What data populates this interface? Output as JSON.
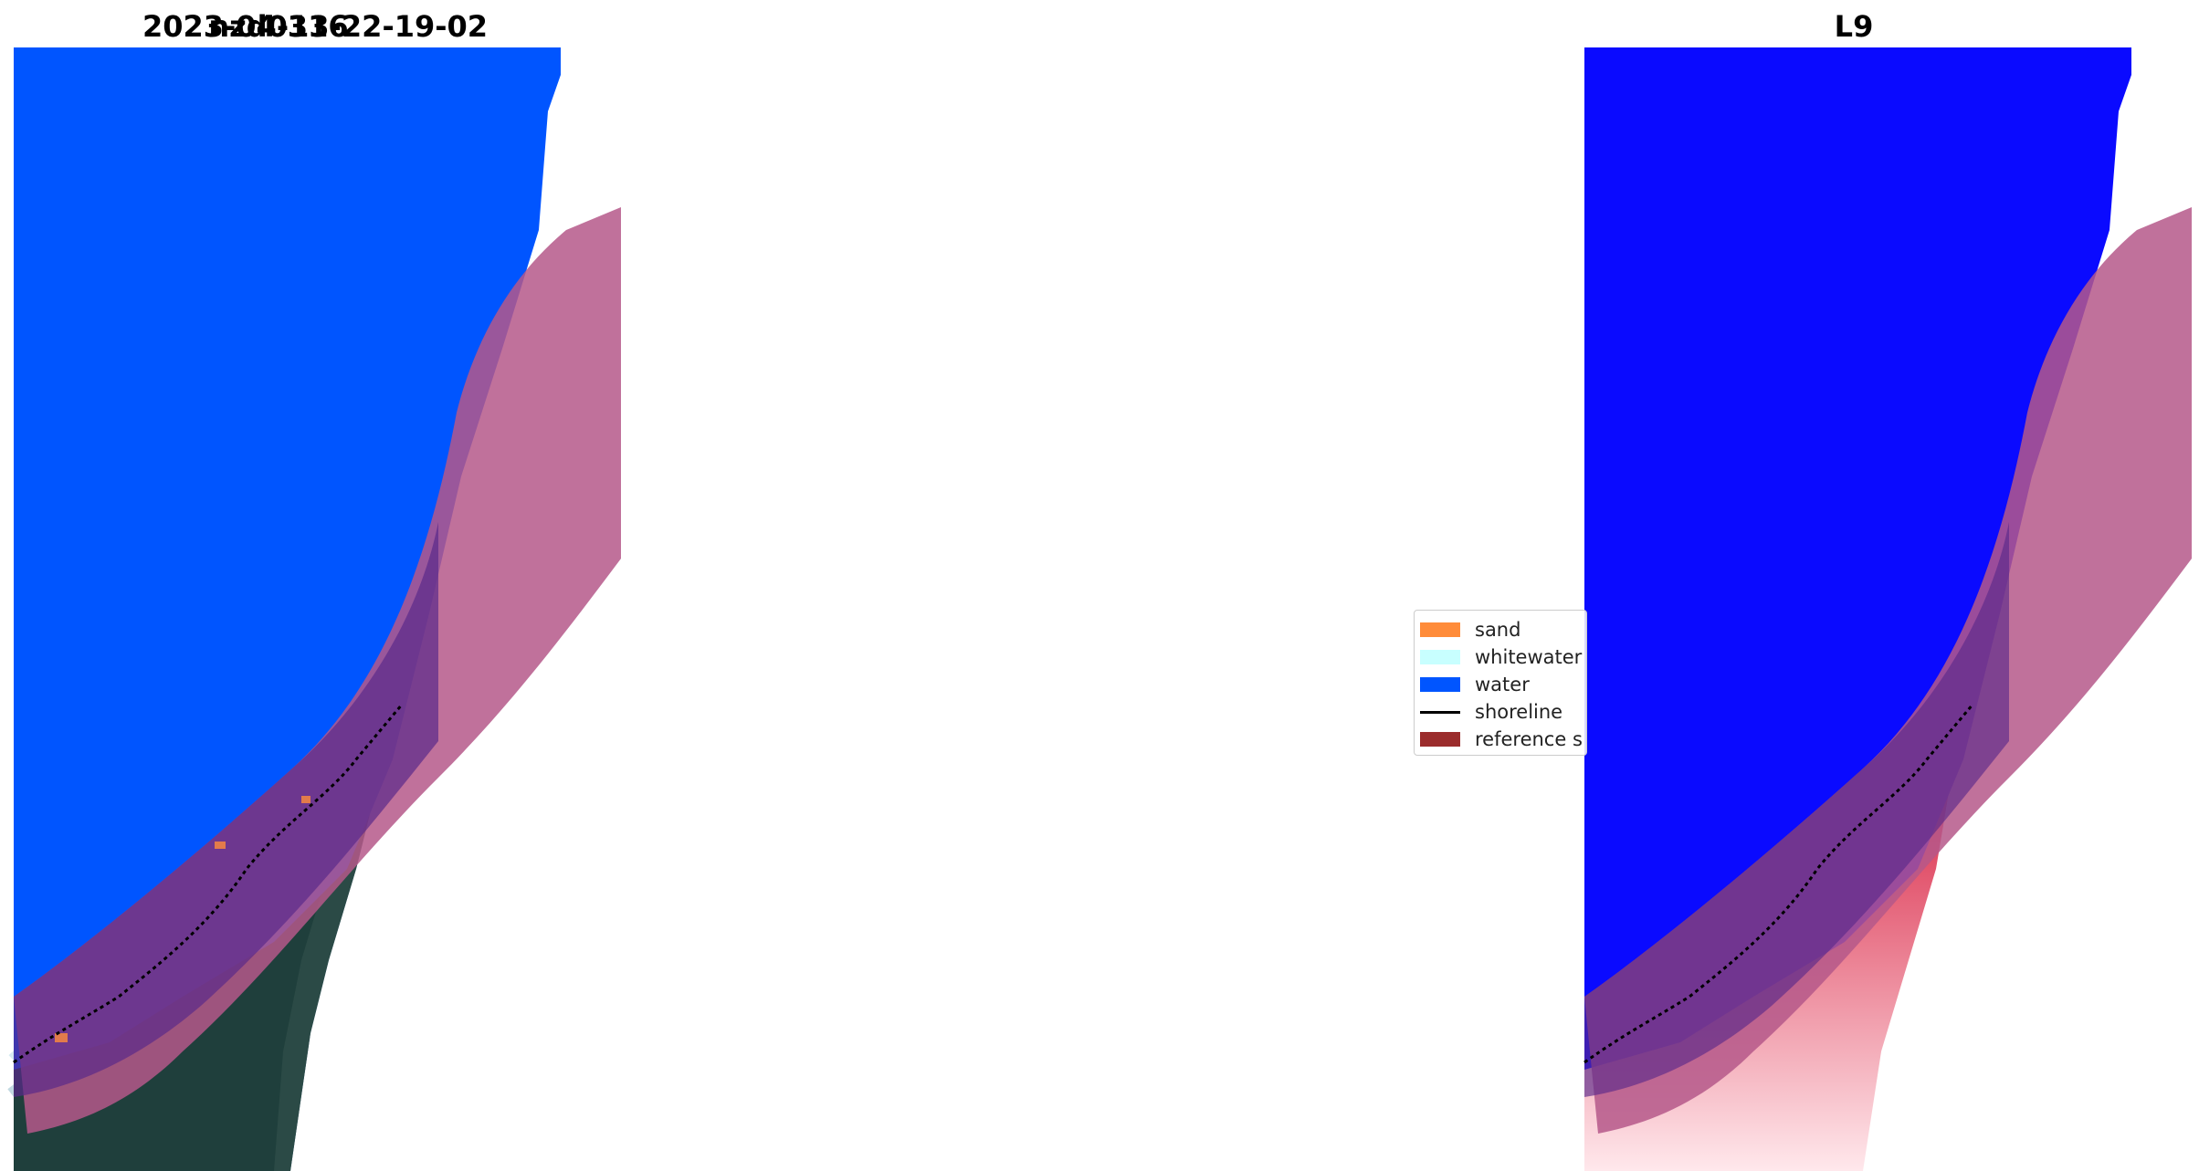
{
  "panels": [
    {
      "title": "nzd0316"
    },
    {
      "title": "2023-04-13-22-19-02"
    },
    {
      "title": "L9"
    }
  ],
  "legend": {
    "items": [
      {
        "label": "sand",
        "color": "#ff8c3a",
        "kind": "patch"
      },
      {
        "label": "whitewater",
        "color": "#c8ffff",
        "kind": "patch"
      },
      {
        "label": "water",
        "color": "#0055ff",
        "kind": "patch"
      },
      {
        "label": "shoreline",
        "color": "#000000",
        "kind": "line"
      },
      {
        "label": "reference s",
        "color": "#9b2c2c",
        "kind": "patch"
      }
    ]
  },
  "colors": {
    "sea_rgb": "#1f4a73",
    "water_class": "#0055ff",
    "buffer_overlay": "#b5588a",
    "index_water": "#0a0aff",
    "index_land": "#e8203a"
  }
}
